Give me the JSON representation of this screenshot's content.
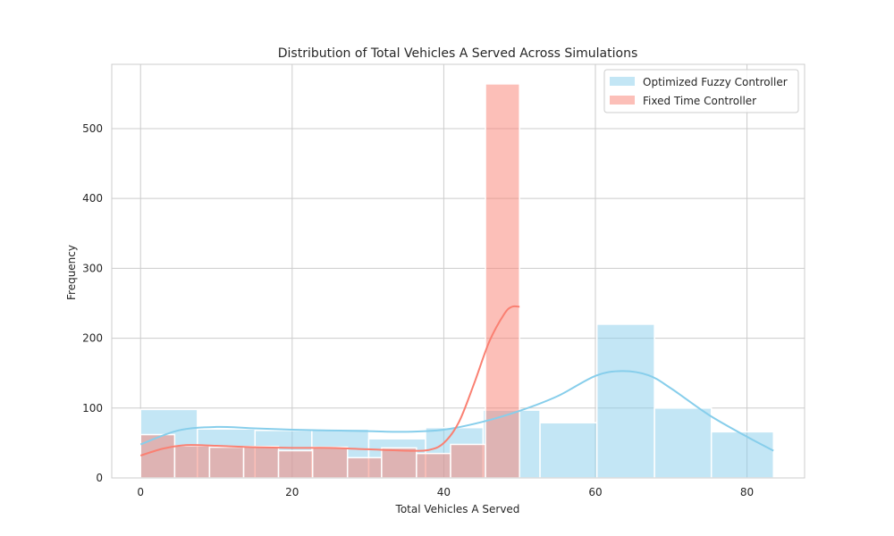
{
  "chart_data": {
    "type": "histogram",
    "title": "Distribution of Total Vehicles A Served Across Simulations",
    "xlabel": "Total Vehicles A Served",
    "ylabel": "Frequency",
    "xlim": [
      -3.8,
      87.6
    ],
    "ylim": [
      0,
      592
    ],
    "xticks": [
      0,
      20,
      40,
      60,
      80
    ],
    "yticks": [
      0,
      100,
      200,
      300,
      400,
      500
    ],
    "grid": true,
    "legend_position": "top-right",
    "series": [
      {
        "name": "Optimized Fuzzy Controller",
        "color": "#87ceeb",
        "bins": [
          {
            "x0": 0.0,
            "x1": 7.5,
            "count": 98
          },
          {
            "x0": 7.5,
            "x1": 15.1,
            "count": 70
          },
          {
            "x0": 15.1,
            "x1": 22.6,
            "count": 68
          },
          {
            "x0": 22.6,
            "x1": 30.1,
            "count": 70
          },
          {
            "x0": 30.1,
            "x1": 37.6,
            "count": 56
          },
          {
            "x0": 37.6,
            "x1": 45.2,
            "count": 72
          },
          {
            "x0": 45.2,
            "x1": 52.7,
            "count": 97
          },
          {
            "x0": 52.7,
            "x1": 60.2,
            "count": 79
          },
          {
            "x0": 60.2,
            "x1": 67.8,
            "count": 220
          },
          {
            "x0": 67.8,
            "x1": 75.3,
            "count": 100
          },
          {
            "x0": 75.3,
            "x1": 83.5,
            "count": 66
          }
        ],
        "kde": {
          "x": [
            0,
            5,
            10,
            15,
            20,
            25,
            30,
            35,
            40,
            45,
            50,
            55,
            60,
            63.5,
            67,
            70,
            75,
            80,
            83.5
          ],
          "y": [
            48,
            68,
            73,
            71,
            69,
            68,
            67,
            66,
            69,
            80,
            96,
            117,
            146,
            153,
            147,
            128,
            90,
            59,
            39
          ]
        }
      },
      {
        "name": "Fixed Time Controller",
        "color": "#fa8072",
        "bins": [
          {
            "x0": 0.0,
            "x1": 4.5,
            "count": 62
          },
          {
            "x0": 4.5,
            "x1": 9.1,
            "count": 46
          },
          {
            "x0": 9.1,
            "x1": 13.6,
            "count": 44
          },
          {
            "x0": 13.6,
            "x1": 18.2,
            "count": 45
          },
          {
            "x0": 18.2,
            "x1": 22.7,
            "count": 39
          },
          {
            "x0": 22.7,
            "x1": 27.3,
            "count": 44
          },
          {
            "x0": 27.3,
            "x1": 31.8,
            "count": 29
          },
          {
            "x0": 31.8,
            "x1": 36.4,
            "count": 43
          },
          {
            "x0": 36.4,
            "x1": 40.9,
            "count": 35
          },
          {
            "x0": 40.9,
            "x1": 45.5,
            "count": 48
          },
          {
            "x0": 45.5,
            "x1": 50.0,
            "count": 564
          }
        ],
        "kde": {
          "x": [
            0,
            3,
            6,
            10,
            15,
            20,
            25,
            30,
            35,
            38,
            40,
            42,
            44,
            46,
            48,
            49,
            50
          ],
          "y": [
            32,
            42,
            47,
            46,
            44,
            43,
            43,
            41,
            39,
            40,
            50,
            80,
            135,
            195,
            235,
            245,
            245
          ]
        }
      }
    ]
  }
}
